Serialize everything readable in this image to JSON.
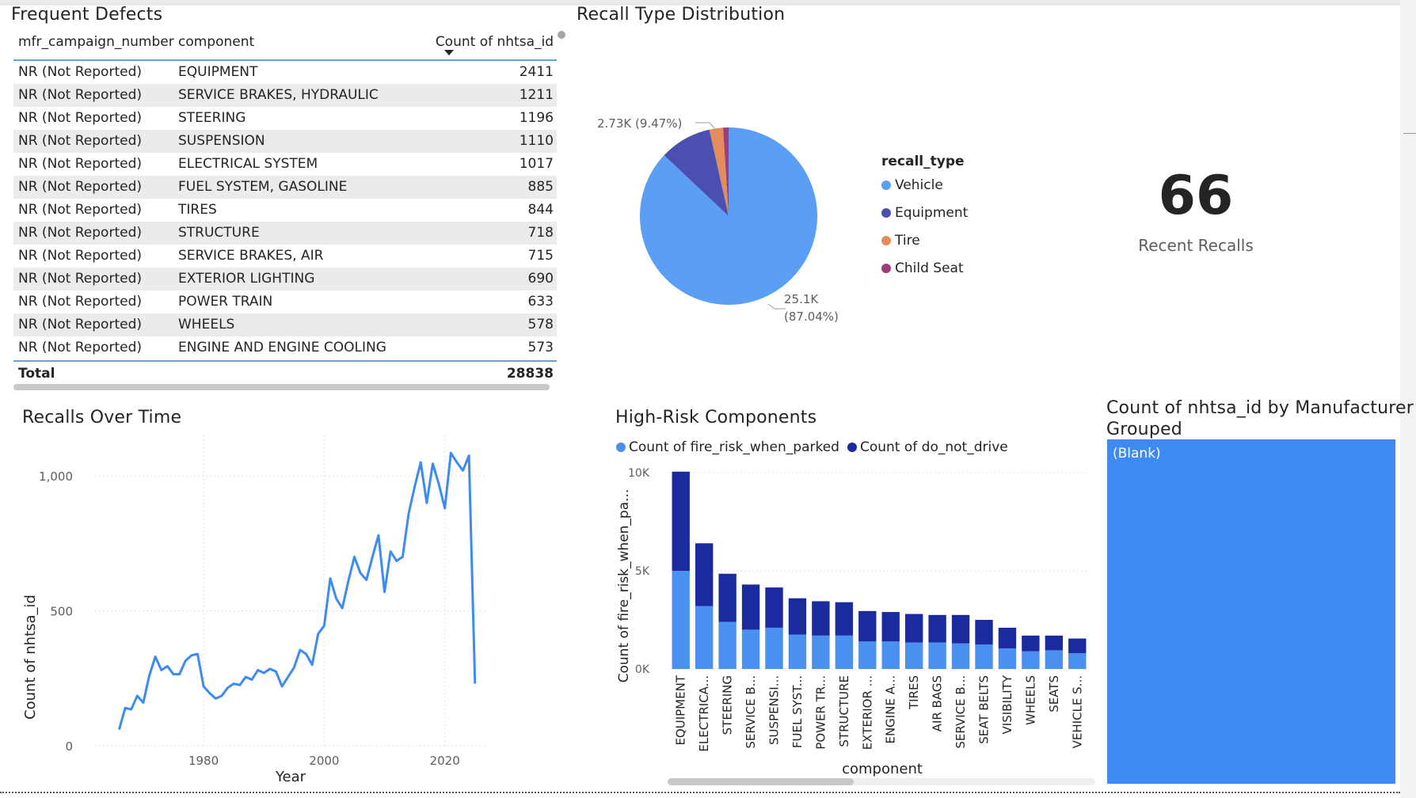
{
  "frequent_defects": {
    "title": "Frequent Defects",
    "columns": [
      "mfr_campaign_number",
      "component",
      "Count of nhtsa_id"
    ],
    "rows": [
      [
        "NR (Not Reported)",
        "EQUIPMENT",
        "2411"
      ],
      [
        "NR (Not Reported)",
        "SERVICE BRAKES, HYDRAULIC",
        "1211"
      ],
      [
        "NR (Not Reported)",
        "STEERING",
        "1196"
      ],
      [
        "NR (Not Reported)",
        "SUSPENSION",
        "1110"
      ],
      [
        "NR (Not Reported)",
        "ELECTRICAL SYSTEM",
        "1017"
      ],
      [
        "NR (Not Reported)",
        "FUEL SYSTEM, GASOLINE",
        "885"
      ],
      [
        "NR (Not Reported)",
        "TIRES",
        "844"
      ],
      [
        "NR (Not Reported)",
        "STRUCTURE",
        "718"
      ],
      [
        "NR (Not Reported)",
        "SERVICE BRAKES, AIR",
        "715"
      ],
      [
        "NR (Not Reported)",
        "EXTERIOR LIGHTING",
        "690"
      ],
      [
        "NR (Not Reported)",
        "POWER TRAIN",
        "633"
      ],
      [
        "NR (Not Reported)",
        "WHEELS",
        "578"
      ],
      [
        "NR (Not Reported)",
        "ENGINE AND ENGINE COOLING",
        "573"
      ]
    ],
    "total_label": "Total",
    "total_value": "28838"
  },
  "recall_type": {
    "title": "Recall Type Distribution",
    "legend_title": "recall_type",
    "label_equipment": "2.73K (9.47%)",
    "label_vehicle_1": "25.1K",
    "label_vehicle_2": "(87.04%)"
  },
  "kpi": {
    "value": "66",
    "label": "Recent Recalls"
  },
  "treemap": {
    "title": "Count of nhtsa_id by Manufacturer",
    "title2": "Grouped",
    "label": "(Blank)",
    "color": "#3d8bf2"
  },
  "chart_data": [
    {
      "type": "pie",
      "title": "Recall Type Distribution",
      "legend_title": "recall_type",
      "slices": [
        {
          "name": "Vehicle",
          "value": 25100,
          "percent": 87.04,
          "color": "#5a9ef5"
        },
        {
          "name": "Equipment",
          "value": 2730,
          "percent": 9.47,
          "color": "#4a4fb0"
        },
        {
          "name": "Tire",
          "value": 720,
          "percent": 2.5,
          "color": "#e38c5c"
        },
        {
          "name": "Child Seat",
          "value": 290,
          "percent": 1.0,
          "color": "#a23b7c"
        }
      ]
    },
    {
      "type": "line",
      "title": "Recalls Over Time",
      "xlabel": "Year",
      "ylabel": "Count of nhtsa_id",
      "xlim": [
        1962,
        2027
      ],
      "ylim": [
        0,
        1150
      ],
      "xticks": [
        1980,
        2000,
        2020
      ],
      "yticks": [
        0,
        500,
        1000
      ],
      "ytick_labels": [
        "0",
        "500",
        "1,000"
      ],
      "color": "#3d8bf2",
      "x": [
        1966,
        1967,
        1968,
        1969,
        1970,
        1971,
        1972,
        1973,
        1974,
        1975,
        1976,
        1977,
        1978,
        1979,
        1980,
        1981,
        1982,
        1983,
        1984,
        1985,
        1986,
        1987,
        1988,
        1989,
        1990,
        1991,
        1992,
        1993,
        1994,
        1995,
        1996,
        1997,
        1998,
        1999,
        2000,
        2001,
        2002,
        2003,
        2004,
        2005,
        2006,
        2007,
        2008,
        2009,
        2010,
        2011,
        2012,
        2013,
        2014,
        2015,
        2016,
        2017,
        2018,
        2019,
        2020,
        2021,
        2022,
        2023,
        2024,
        2025
      ],
      "y": [
        60,
        140,
        135,
        185,
        160,
        260,
        330,
        280,
        295,
        265,
        265,
        315,
        335,
        340,
        220,
        195,
        175,
        185,
        215,
        230,
        225,
        255,
        245,
        280,
        270,
        285,
        275,
        220,
        255,
        290,
        355,
        340,
        300,
        415,
        445,
        620,
        545,
        510,
        610,
        700,
        640,
        615,
        700,
        780,
        570,
        720,
        685,
        700,
        860,
        960,
        1050,
        900,
        1045,
        970,
        880,
        1085,
        1050,
        1020,
        1075,
        230
      ]
    },
    {
      "type": "bar",
      "stacked": true,
      "title": "High-Risk Components",
      "xlabel": "component",
      "ylabel": "Count of fire_risk_when_pa...",
      "ylim": [
        0,
        10000
      ],
      "yticks": [
        0,
        5000,
        10000
      ],
      "ytick_labels": [
        "0K",
        "5K",
        "10K"
      ],
      "categories": [
        "EQUIPMENT",
        "ELECTRICA...",
        "STEERING",
        "SERVICE B...",
        "SUSPENSI...",
        "FUEL SYST...",
        "POWER TR...",
        "STRUCTURE",
        "EXTERIOR ...",
        "ENGINE A...",
        "TIRES",
        "AIR BAGS",
        "SERVICE B...",
        "SEAT BELTS",
        "VISIBILITY",
        "WHEELS",
        "SEATS",
        "VEHICLE S..."
      ],
      "series": [
        {
          "name": "Count of fire_risk_when_parked",
          "color": "#4a90f0",
          "values": [
            5000,
            3200,
            2400,
            2000,
            2100,
            1750,
            1700,
            1700,
            1400,
            1400,
            1350,
            1350,
            1300,
            1250,
            1050,
            900,
            950,
            800
          ]
        },
        {
          "name": "Count of do_not_drive",
          "color": "#1c2aa0",
          "values": [
            5050,
            3200,
            2450,
            2300,
            2050,
            1850,
            1750,
            1700,
            1550,
            1500,
            1450,
            1400,
            1450,
            1250,
            1050,
            800,
            750,
            750
          ]
        }
      ]
    }
  ]
}
